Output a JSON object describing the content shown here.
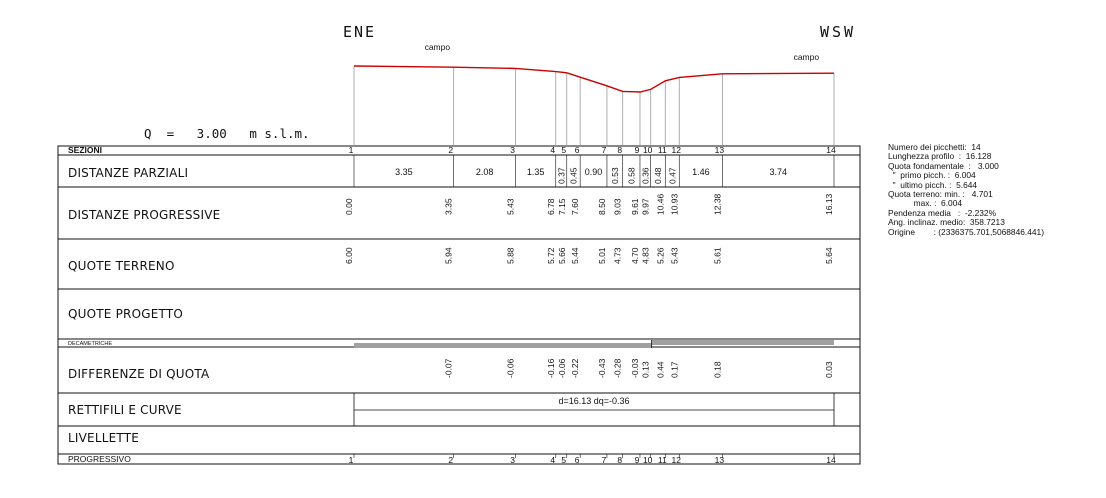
{
  "header": {
    "dir_left": "ENE",
    "dir_right": "WSW",
    "reference_level": "Q  =   3.00   m s.l.m."
  },
  "chart_data": {
    "type": "line",
    "title": "",
    "x_unit": "m",
    "terrain_annotations": [
      {
        "text": "campo",
        "x": 2.8
      },
      {
        "text": "campo",
        "x": 15.2
      }
    ],
    "x": [
      0.0,
      3.35,
      5.43,
      6.78,
      7.15,
      7.6,
      8.5,
      9.03,
      9.61,
      9.97,
      10.46,
      10.93,
      12.38,
      16.13
    ],
    "y": [
      6.0,
      5.94,
      5.88,
      5.72,
      5.66,
      5.44,
      5.01,
      4.73,
      4.7,
      4.83,
      5.26,
      5.43,
      5.61,
      5.64
    ],
    "sections": [
      "1",
      "2",
      "3",
      "4",
      "5",
      "6",
      "7",
      "8",
      "9",
      "10",
      "11",
      "12",
      "13",
      "14"
    ],
    "distanze_parziali": [
      "3.35",
      "2.08",
      "1.35",
      "0.37",
      "0.45",
      "0.90",
      "0.53",
      "0.58",
      "0.36",
      "0.48",
      "0.47",
      "1.46",
      "3.74"
    ],
    "distanze_progressive": [
      "0.00",
      "3.35",
      "5.43",
      "6.78",
      "7.15",
      "7.60",
      "8.50",
      "9.03",
      "9.61",
      "9.97",
      "10.46",
      "10.93",
      "12.38",
      "16.13"
    ],
    "quote_terreno": [
      "6.00",
      "5.94",
      "5.88",
      "5.72",
      "5.66",
      "5.44",
      "5.01",
      "4.73",
      "4.70",
      "4.83",
      "5.26",
      "5.43",
      "5.61",
      "5.64"
    ],
    "differenze_quota": [
      "",
      "-0.07",
      "-0.06",
      "-0.16",
      "-0.06",
      "-0.22",
      "-0.43",
      "-0.28",
      "-0.03",
      "0.13",
      "0.44",
      "0.17",
      "0.18",
      "0.03"
    ],
    "rettifili": "d=16.13 dq=-0.36",
    "colors": {
      "profile": "#cc0000",
      "bar": "#a0a0a0"
    }
  },
  "table": {
    "rows": {
      "sezioni": "SEZIONI",
      "parziali": "DISTANZE PARZIALI",
      "progressive": "DISTANZE PROGRESSIVE",
      "terreno": "QUOTE TERRENO",
      "progetto": "QUOTE PROGETTO",
      "decametriche": "DECAMETRICHE",
      "differenze": "DIFFERENZE DI QUOTA",
      "rettifili": "RETTIFILI E CURVE",
      "livellette": "LIVELLETTE",
      "progressivo": "PROGRESSIVO"
    }
  },
  "info": {
    "lines": [
      "Numero dei picchetti:  14",
      "Lunghezza profilo  :  16.128",
      "Quota fondamentale  :   3.000",
      "  \"  primo picch. :  6.004",
      "  \"  ultimo picch. :  5.644",
      "Quota terreno: min. :   4.701",
      "           max. :  6.004",
      "Pendenza media   :  -2.232%",
      "Ang. inclinaz. medio:  358.7213",
      "Origine        : (2336375.701,5068846.441)"
    ]
  }
}
